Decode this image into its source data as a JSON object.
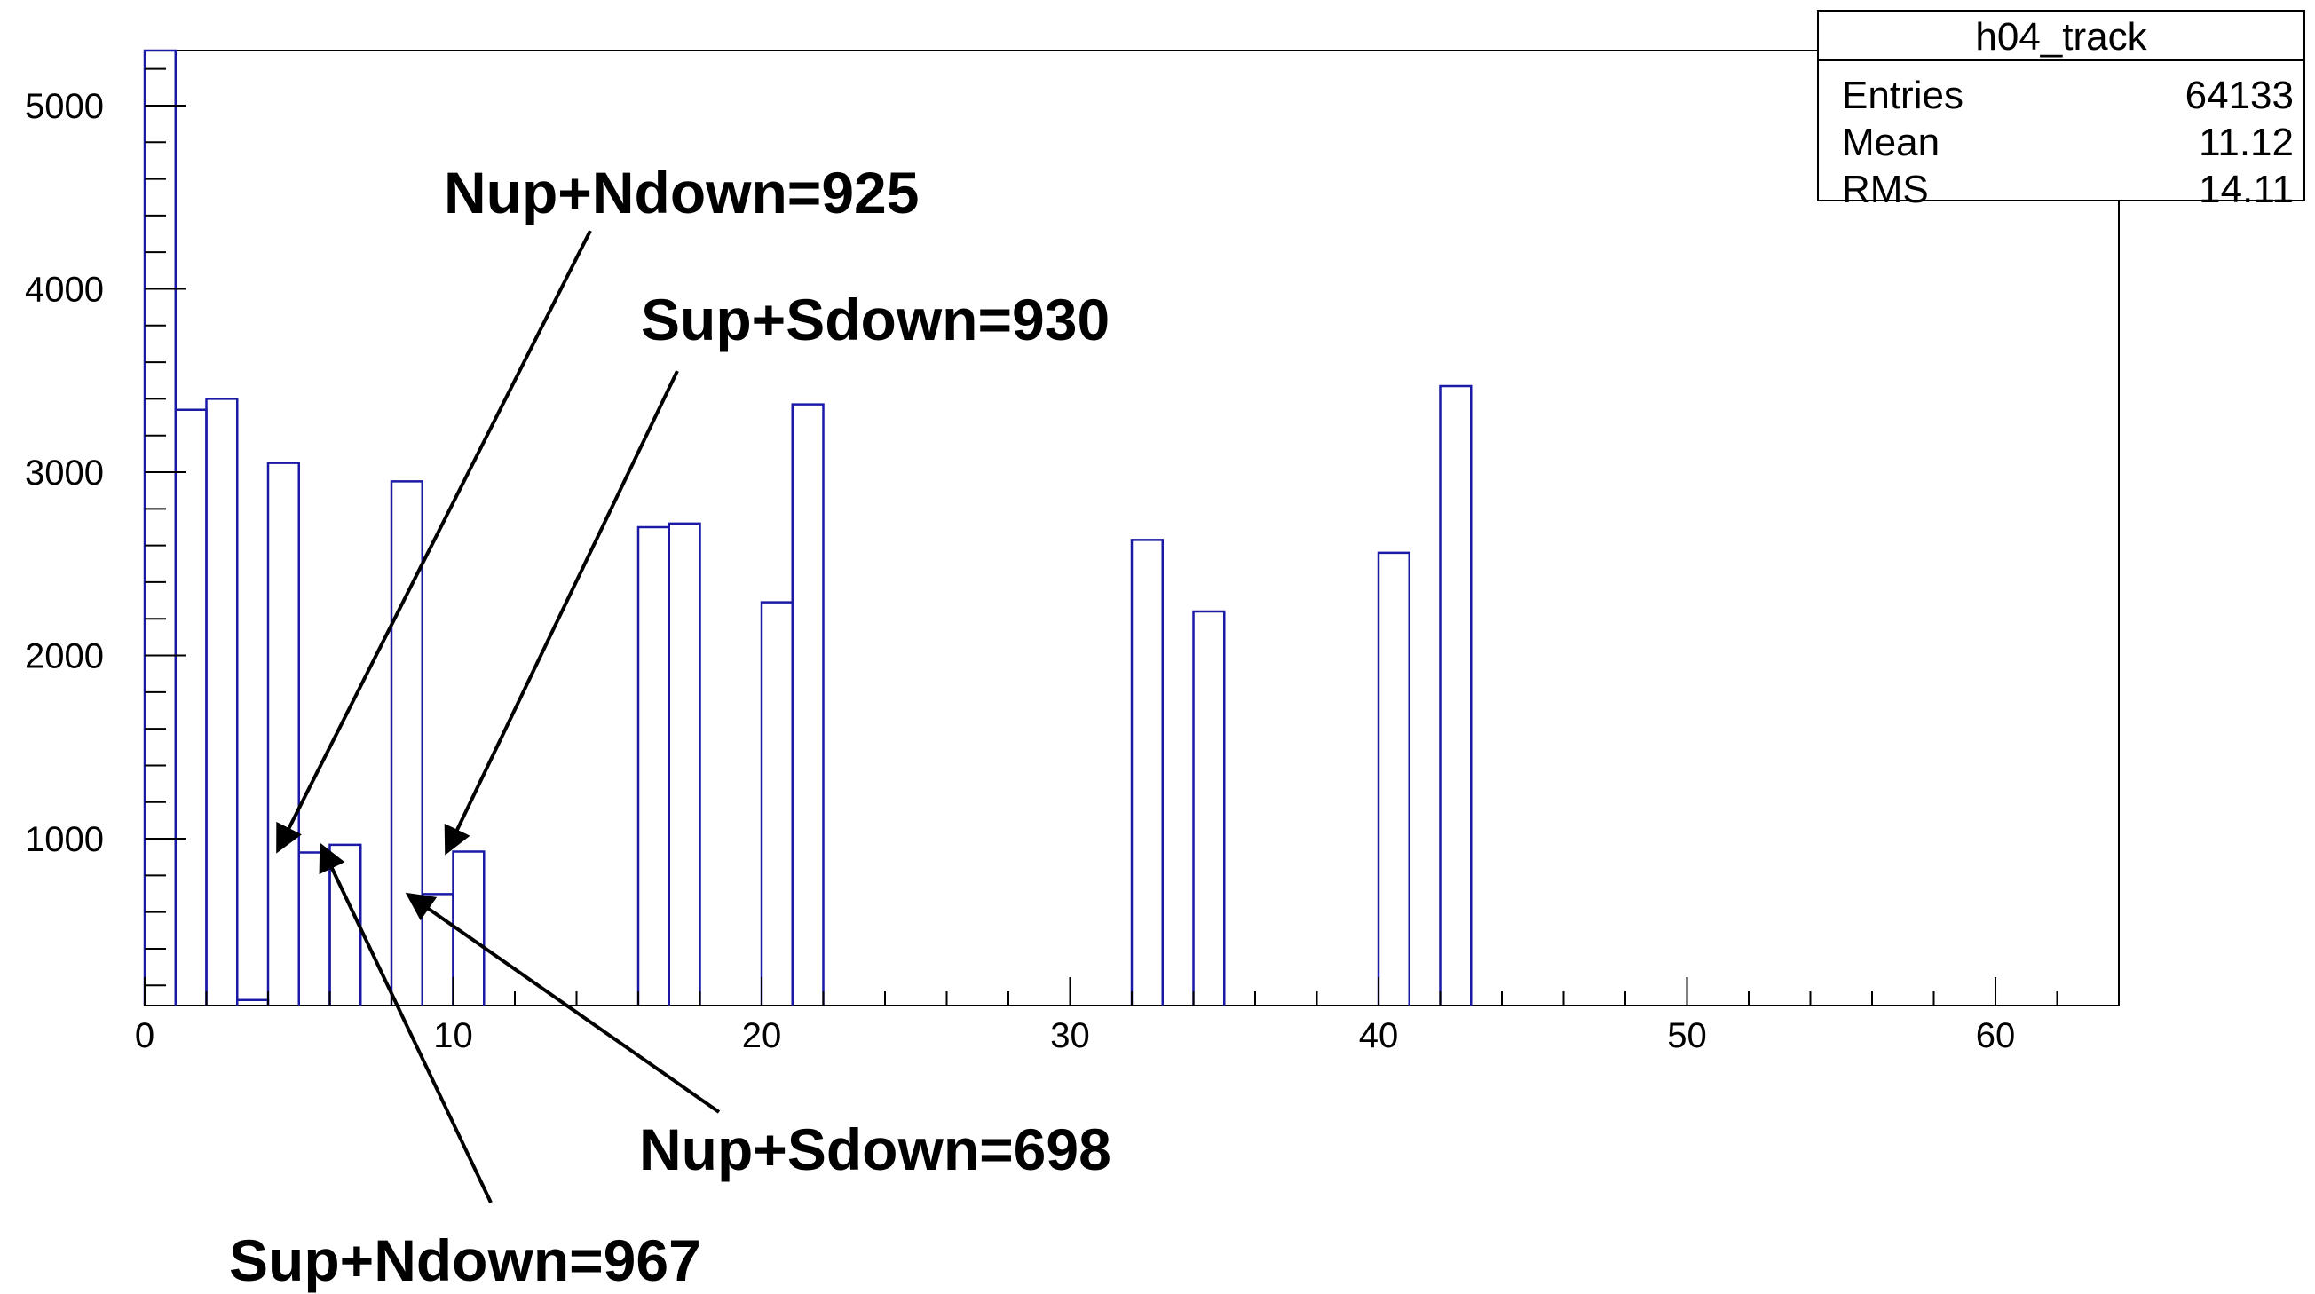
{
  "chart_data": {
    "type": "histogram",
    "title": "",
    "xlabel": "",
    "ylabel": "",
    "xlim": [
      0,
      64
    ],
    "ylim": [
      90,
      5300
    ],
    "x_ticks": [
      0,
      10,
      20,
      30,
      40,
      50,
      60
    ],
    "x_tick_labels": [
      "0",
      "10",
      "20",
      "30",
      "40",
      "50",
      "60"
    ],
    "y_ticks": [
      1000,
      2000,
      3000,
      4000,
      5000
    ],
    "y_tick_labels": [
      "1000",
      "2000",
      "3000",
      "4000",
      "5000"
    ],
    "grid": false,
    "line_color": "#1a1aa6",
    "bin_width": 1,
    "bin_starts": [
      0,
      1,
      2,
      3,
      4,
      5,
      6,
      7,
      8,
      9,
      10,
      11,
      12,
      13,
      14,
      15,
      16,
      17,
      18,
      19,
      20,
      21,
      22,
      23,
      24,
      25,
      26,
      27,
      28,
      29,
      30,
      31,
      32,
      33,
      34,
      35,
      36,
      37,
      38,
      39,
      40,
      41,
      42,
      43,
      44,
      45,
      46,
      47,
      48,
      49,
      50,
      51,
      52,
      53,
      54,
      55,
      56,
      57,
      58,
      59,
      60,
      61,
      62,
      63
    ],
    "values": [
      5300,
      3340,
      3400,
      120,
      3050,
      925,
      967,
      0,
      2950,
      698,
      930,
      0,
      0,
      0,
      0,
      0,
      2700,
      2720,
      0,
      0,
      2290,
      3370,
      0,
      0,
      0,
      0,
      0,
      0,
      0,
      0,
      0,
      0,
      2630,
      0,
      2240,
      0,
      0,
      0,
      0,
      0,
      2560,
      0,
      3470,
      0,
      0,
      0,
      0,
      0,
      0,
      0,
      0,
      0,
      0,
      0,
      0,
      0,
      0,
      0,
      0,
      0,
      0,
      0,
      0,
      0
    ],
    "stats_box": {
      "title": "h04_track",
      "rows": [
        {
          "label": "Entries",
          "value": "64133"
        },
        {
          "label": "Mean",
          "value": "11.12"
        },
        {
          "label": "RMS",
          "value": "14.11"
        }
      ]
    },
    "annotations": [
      {
        "text": "Nup+Ndown=925",
        "target_bin": 5
      },
      {
        "text": "Sup+Sdown=930",
        "target_bin": 10
      },
      {
        "text": "Nup+Sdown=698",
        "target_bin": 9
      },
      {
        "text": "Sup+Ndown=967",
        "target_bin": 6
      }
    ]
  }
}
